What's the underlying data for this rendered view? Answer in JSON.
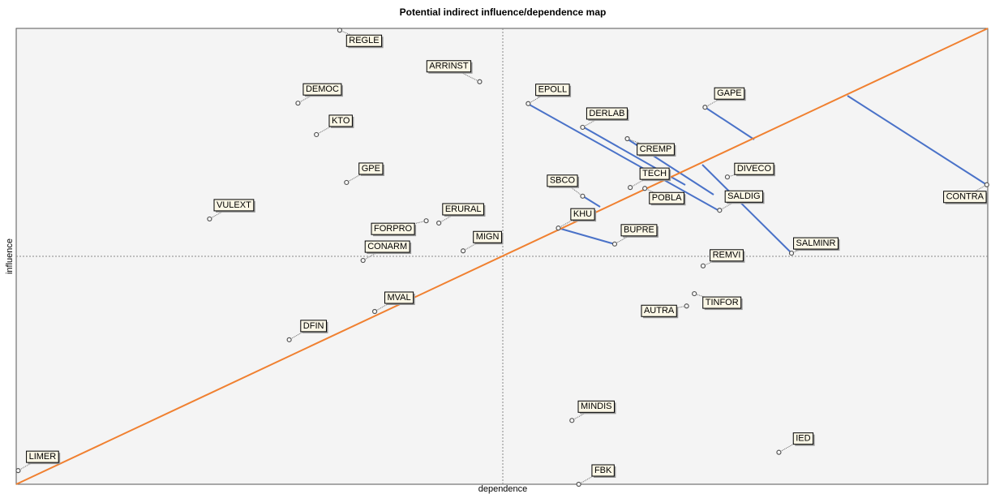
{
  "chart_data": {
    "type": "scatter",
    "title": "Potential indirect influence/dependence map",
    "x_label": "dependence",
    "y_label": "influence",
    "xlim": [
      0,
      100
    ],
    "ylim": [
      0,
      100
    ],
    "labels": [
      "REGLE",
      "ARRINST",
      "DEMOC",
      "KTO",
      "GPE",
      "VULEXT",
      "ERURAL",
      "FORPRO",
      "CONARM",
      "MIGN",
      "MVAL",
      "DFIN",
      "LIMER",
      "EPOLL",
      "DERLAB",
      "CREMP",
      "TECH",
      "POBLA",
      "SBCO",
      "KHU",
      "BUPRE",
      "GAPE",
      "DIVECO",
      "SALDIG",
      "SALMINR",
      "CONTRA",
      "REMVI",
      "TINFOR",
      "AUTRA",
      "MINDIS",
      "IED",
      "FBK"
    ],
    "x": [
      33.3,
      47.7,
      29.0,
      30.9,
      34.0,
      19.9,
      43.5,
      42.2,
      35.7,
      46.0,
      36.9,
      28.1,
      0.2,
      52.7,
      58.3,
      62.9,
      63.2,
      64.7,
      58.3,
      55.8,
      61.6,
      70.9,
      73.2,
      72.4,
      79.8,
      99.9,
      70.7,
      69.8,
      69.0,
      57.2,
      78.5,
      57.9
    ],
    "y": [
      99.6,
      88.3,
      83.6,
      76.7,
      66.2,
      58.2,
      57.3,
      57.8,
      49.1,
      51.2,
      37.9,
      31.7,
      3.0,
      83.5,
      78.3,
      75.8,
      65.1,
      64.9,
      63.2,
      56.2,
      52.7,
      82.7,
      67.4,
      60.1,
      50.7,
      65.7,
      47.9,
      41.8,
      39.1,
      14.0,
      7.0,
      0.0
    ],
    "color": "#555555",
    "diagonal_color": "#f08030",
    "shift_color": "#4a72c8"
  }
}
